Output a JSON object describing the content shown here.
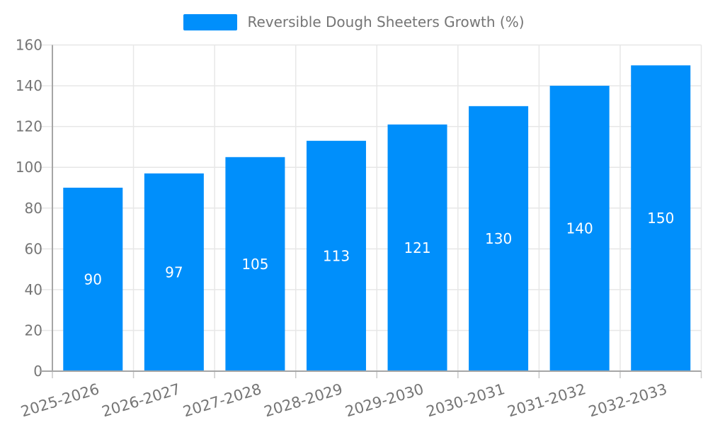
{
  "chart_data": {
    "type": "bar",
    "categories": [
      "2025-2026",
      "2026-2027",
      "2027-2028",
      "2028-2029",
      "2029-2030",
      "2030-2031",
      "2031-2032",
      "2032-2033"
    ],
    "series": [
      {
        "name": "Reversible Dough Sheeters Growth (%)",
        "values": [
          90,
          97,
          105,
          113,
          121,
          130,
          140,
          150
        ]
      }
    ],
    "title": "",
    "xlabel": "",
    "ylabel": "",
    "ylim": [
      0,
      160
    ],
    "yticks": [
      0,
      20,
      40,
      60,
      80,
      100,
      120,
      140,
      160
    ],
    "grid": "horizontal and vertical light gray gridlines",
    "legend_position": "top-center",
    "value_labels": "white, centered inside each bar",
    "x_label_rotation_deg": -17,
    "colors": {
      "bar": "#008FFB",
      "value_label": "#ffffff",
      "axis_label": "#757575",
      "legend_text": "#757575",
      "gridline": "#e7e7e7",
      "tick": "#c9c9c9",
      "axis_line": "#a6a6a6",
      "background": "#ffffff"
    }
  }
}
